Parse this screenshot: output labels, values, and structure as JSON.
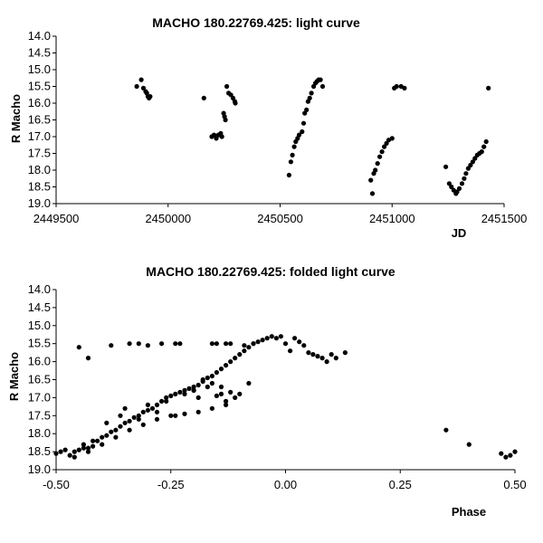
{
  "chart_data": [
    {
      "type": "scatter",
      "title": "MACHO 180.22769.425: light curve",
      "xlabel": "JD",
      "ylabel": "R Macho",
      "xlim": [
        2449500,
        2451500
      ],
      "ylim": [
        19.0,
        14.0
      ],
      "y_inverted": true,
      "x_ticks": [
        "2449500",
        "2450000",
        "2450500",
        "2451000",
        "2451500"
      ],
      "x_tick_values": [
        2449500,
        2450000,
        2450500,
        2451000,
        2451500
      ],
      "y_ticks": [
        "14.0",
        "14.5",
        "15.0",
        "15.5",
        "16.0",
        "16.5",
        "17.0",
        "17.5",
        "18.0",
        "18.5",
        "19.0"
      ],
      "y_tick_values": [
        14.0,
        14.5,
        15.0,
        15.5,
        16.0,
        16.5,
        17.0,
        17.5,
        18.0,
        18.5,
        19.0
      ],
      "grid": false,
      "series": [
        {
          "x": [
            2449860,
            2449880,
            2449890,
            2449900,
            2449905,
            2449910,
            2449915,
            2449920,
            2450160,
            2450195,
            2450205,
            2450215,
            2450225,
            2450235,
            2450240,
            2450248,
            2450252,
            2450256,
            2450262,
            2450270,
            2450280,
            2450290,
            2450298,
            2450300,
            2450540,
            2450548,
            2450555,
            2450563,
            2450570,
            2450578,
            2450585,
            2450598,
            2450605,
            2450610,
            2450618,
            2450625,
            2450632,
            2450640,
            2450650,
            2450658,
            2450665,
            2450672,
            2450680,
            2450690,
            2450905,
            2450912,
            2450918,
            2450925,
            2450935,
            2450945,
            2450955,
            2450965,
            2450975,
            2450985,
            2451000,
            2451010,
            2451020,
            2451040,
            2451055,
            2451240,
            2451255,
            2451265,
            2451275,
            2451285,
            2451290,
            2451300,
            2451312,
            2451322,
            2451330,
            2451340,
            2451350,
            2451360,
            2451370,
            2451380,
            2451390,
            2451400,
            2451410,
            2451420,
            2451430
          ],
          "y": [
            15.5,
            15.3,
            15.55,
            15.65,
            15.7,
            15.8,
            15.85,
            15.8,
            15.85,
            17.0,
            16.95,
            17.05,
            16.95,
            16.9,
            17.0,
            16.3,
            16.4,
            16.5,
            15.5,
            15.7,
            15.75,
            15.85,
            15.95,
            16.0,
            18.15,
            17.75,
            17.55,
            17.3,
            17.15,
            17.05,
            16.95,
            16.85,
            16.6,
            16.3,
            16.2,
            15.95,
            15.85,
            15.7,
            15.5,
            15.4,
            15.35,
            15.3,
            15.3,
            15.5,
            18.3,
            18.7,
            18.1,
            18.0,
            17.8,
            17.6,
            17.45,
            17.3,
            17.2,
            17.1,
            17.05,
            15.55,
            15.5,
            15.5,
            15.55,
            17.9,
            18.4,
            18.5,
            18.6,
            18.7,
            18.65,
            18.55,
            18.4,
            18.25,
            18.1,
            17.95,
            17.85,
            17.75,
            17.65,
            17.55,
            17.5,
            17.45,
            17.3,
            17.15,
            15.55
          ]
        }
      ]
    },
    {
      "type": "scatter",
      "title": "MACHO 180.22769.425: folded light curve",
      "xlabel": "Phase",
      "ylabel": "R Macho",
      "xlim": [
        -0.5,
        0.5
      ],
      "ylim": [
        19.0,
        14.0
      ],
      "y_inverted": true,
      "x_ticks": [
        "-0.50",
        "-0.25",
        "0.00",
        "0.25",
        "0.50"
      ],
      "x_tick_values": [
        -0.5,
        -0.25,
        0.0,
        0.25,
        0.5
      ],
      "y_ticks": [
        "14.0",
        "14.5",
        "15.0",
        "15.5",
        "16.0",
        "16.5",
        "17.0",
        "17.5",
        "18.0",
        "18.5",
        "19.0"
      ],
      "y_tick_values": [
        14.0,
        14.5,
        15.0,
        15.5,
        16.0,
        16.5,
        17.0,
        17.5,
        18.0,
        18.5,
        19.0
      ],
      "grid": false,
      "series": [
        {
          "x": [
            -0.5,
            -0.49,
            -0.48,
            -0.47,
            -0.46,
            -0.45,
            -0.44,
            -0.43,
            -0.42,
            -0.41,
            -0.4,
            -0.39,
            -0.38,
            -0.37,
            -0.36,
            -0.35,
            -0.34,
            -0.33,
            -0.32,
            -0.31,
            -0.3,
            -0.29,
            -0.28,
            -0.27,
            -0.26,
            -0.25,
            -0.24,
            -0.23,
            -0.22,
            -0.21,
            -0.2,
            -0.19,
            -0.18,
            -0.17,
            -0.16,
            -0.15,
            -0.14,
            -0.13,
            -0.12,
            -0.11,
            -0.1,
            -0.09,
            -0.08,
            -0.07,
            -0.06,
            -0.05,
            -0.04,
            -0.03,
            -0.02,
            -0.01,
            0.0,
            0.01,
            0.02,
            0.03,
            0.04,
            0.05,
            0.06,
            0.07,
            0.08,
            0.09,
            0.1,
            0.11,
            0.13,
            -0.45,
            -0.43,
            -0.38,
            -0.34,
            -0.32,
            -0.3,
            -0.27,
            -0.24,
            -0.23,
            -0.16,
            -0.15,
            -0.13,
            -0.12,
            -0.09,
            -0.07,
            -0.44,
            -0.42,
            -0.39,
            -0.36,
            -0.35,
            -0.32,
            -0.3,
            -0.28,
            -0.26,
            -0.24,
            -0.22,
            -0.2,
            -0.19,
            -0.17,
            -0.15,
            -0.14,
            -0.13,
            -0.12,
            -0.11,
            -0.46,
            -0.43,
            -0.4,
            -0.37,
            -0.34,
            -0.31,
            -0.28,
            -0.25,
            -0.22,
            -0.19,
            -0.16,
            -0.13,
            -0.1,
            -0.08,
            -0.2,
            -0.18,
            -0.16,
            -0.14,
            0.35,
            0.4,
            0.47,
            0.48,
            0.49,
            0.5
          ],
          "y": [
            18.55,
            18.5,
            18.45,
            18.6,
            18.5,
            18.45,
            18.3,
            18.4,
            18.35,
            18.2,
            18.1,
            18.05,
            17.95,
            17.9,
            17.8,
            17.7,
            17.65,
            17.55,
            17.5,
            17.4,
            17.35,
            17.3,
            17.2,
            17.1,
            17.0,
            16.95,
            16.9,
            16.85,
            16.8,
            16.75,
            16.7,
            16.65,
            16.55,
            16.45,
            16.4,
            16.3,
            16.2,
            16.1,
            16.0,
            15.9,
            15.8,
            15.7,
            15.6,
            15.5,
            15.45,
            15.4,
            15.35,
            15.3,
            15.35,
            15.3,
            15.5,
            15.7,
            15.35,
            15.45,
            15.55,
            15.75,
            15.8,
            15.85,
            15.9,
            16.0,
            15.8,
            15.9,
            15.75,
            15.6,
            15.9,
            15.55,
            15.5,
            15.5,
            15.55,
            15.5,
            15.5,
            15.5,
            15.5,
            15.5,
            15.5,
            15.5,
            15.55,
            15.5,
            18.4,
            18.2,
            17.7,
            17.5,
            17.3,
            17.6,
            17.2,
            17.4,
            17.1,
            17.5,
            16.9,
            16.8,
            17.0,
            16.7,
            16.95,
            16.9,
            17.2,
            16.85,
            17.0,
            18.65,
            18.5,
            18.3,
            18.1,
            17.9,
            17.75,
            17.6,
            17.5,
            17.45,
            17.4,
            17.3,
            17.1,
            16.9,
            16.6,
            16.8,
            16.5,
            16.6,
            16.7,
            17.9,
            18.3,
            18.55,
            18.65,
            18.6,
            18.5
          ]
        }
      ]
    }
  ]
}
